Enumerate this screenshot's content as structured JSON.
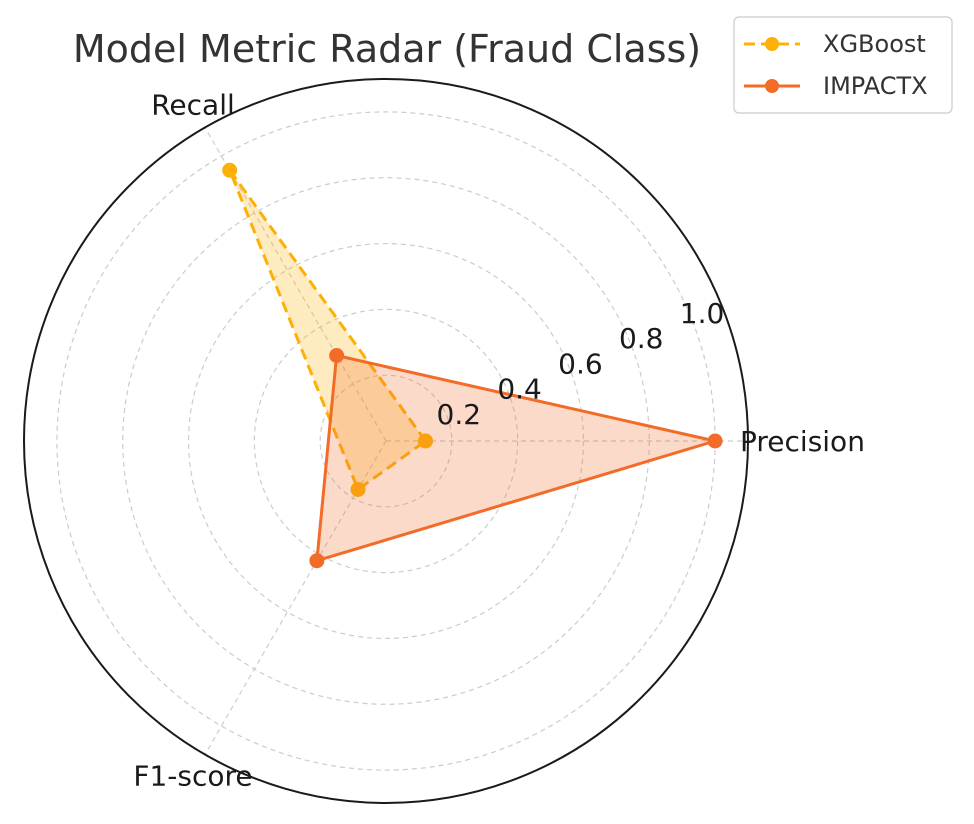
{
  "chart_data": {
    "type": "radar",
    "title": "Model Metric Radar (Fraud Class)",
    "axes": [
      "Precision",
      "Recall",
      "F1-score"
    ],
    "rlim": [
      0,
      1.1
    ],
    "rticks": [
      0.2,
      0.4,
      0.6,
      0.8,
      1.0
    ],
    "rtick_labels": [
      "0.2",
      "0.4",
      "0.6",
      "0.8",
      "1.0"
    ],
    "grid": true,
    "legend_position": "top-right",
    "series": [
      {
        "name": "XGBoost",
        "values": [
          0.12,
          0.95,
          0.17
        ],
        "color": "#FDB005",
        "line_style": "dashed",
        "marker": "circle"
      },
      {
        "name": "IMPACTX",
        "values": [
          1.0,
          0.3,
          0.42
        ],
        "color": "#F26B27",
        "line_style": "solid",
        "marker": "circle"
      }
    ]
  }
}
